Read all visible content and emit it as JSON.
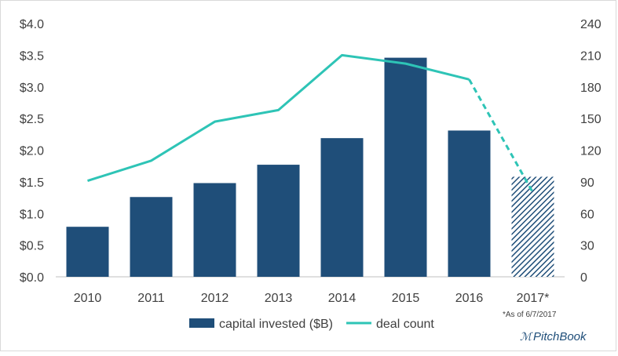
{
  "chart_data": {
    "type": "bar",
    "categories": [
      "2010",
      "2011",
      "2012",
      "2013",
      "2014",
      "2015",
      "2016",
      "2017*"
    ],
    "series": [
      {
        "name": "capital invested ($B)",
        "type": "bar",
        "axis": "left",
        "values": [
          0.79,
          1.26,
          1.48,
          1.77,
          2.19,
          3.46,
          2.31,
          1.58
        ],
        "color": "#1f4e79",
        "partial_last": true
      },
      {
        "name": "deal count",
        "type": "line",
        "axis": "right",
        "values": [
          91,
          110,
          147,
          158,
          210,
          202,
          187,
          80
        ],
        "color": "#2ec4b6",
        "dashed_last_segment": true
      }
    ],
    "y_left": {
      "ticks": [
        "$0.0",
        "$0.5",
        "$1.0",
        "$1.5",
        "$2.0",
        "$2.5",
        "$3.0",
        "$3.5",
        "$4.0"
      ],
      "ylim": [
        0,
        4
      ]
    },
    "y_right": {
      "ticks": [
        "0",
        "30",
        "60",
        "90",
        "120",
        "150",
        "180",
        "210",
        "240"
      ],
      "ylim": [
        0,
        240
      ]
    },
    "title": "",
    "xlabel": "",
    "ylabel": "",
    "grid": false,
    "legend_position": "bottom"
  },
  "footnote": "*As of 6/7/2017",
  "brand": {
    "mark": "ℳ",
    "name": "PitchBook"
  }
}
